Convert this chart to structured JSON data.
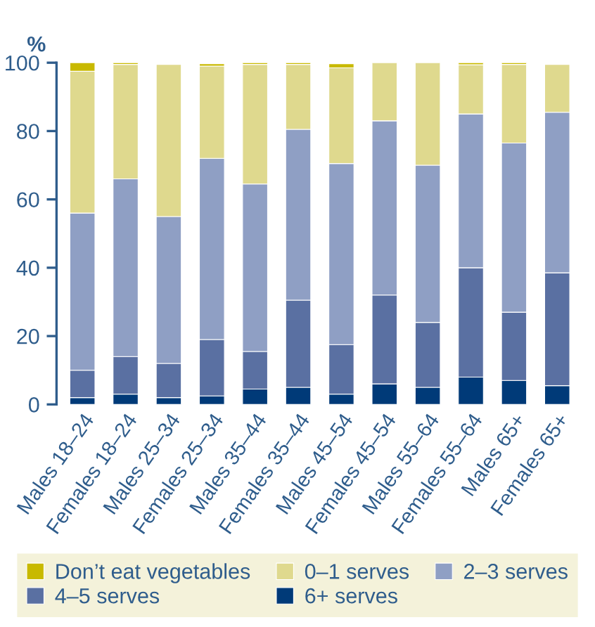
{
  "chart_data": {
    "type": "bar",
    "stacked": true,
    "ylabel": "%",
    "categories": [
      "Males 18–24",
      "Females 18–24",
      "Males 25–34",
      "Females 25–34",
      "Males 35–44",
      "Females 35–44",
      "Males 45–54",
      "Females 45–54",
      "Males 55–64",
      "Females 55–64",
      "Males 65+",
      "Females 65+"
    ],
    "series": [
      {
        "name": "6+ serves",
        "color": "#003a78",
        "values": [
          2,
          3,
          2,
          2.5,
          4.5,
          5,
          3,
          6,
          5,
          8,
          7,
          5.5
        ]
      },
      {
        "name": "4–5 serves",
        "color": "#5a70a2",
        "values": [
          8,
          11,
          10,
          16.5,
          11,
          25.5,
          14.5,
          26,
          19,
          32,
          20,
          33
        ]
      },
      {
        "name": "2–3 serves",
        "color": "#8f9fc4",
        "values": [
          46,
          52,
          43,
          53,
          49,
          50,
          53,
          51,
          46,
          45,
          49.5,
          47
        ]
      },
      {
        "name": "0–1 serves",
        "color": "#dfd98e",
        "values": [
          41.5,
          33.5,
          44.5,
          27,
          35,
          19,
          28,
          17,
          30,
          14.4,
          23,
          14
        ]
      },
      {
        "name": "Don’t eat vegetables",
        "color": "#c8b900",
        "values": [
          2.5,
          0.5,
          null,
          0.7,
          0.5,
          0.5,
          1.2,
          null,
          null,
          0.6,
          0.5,
          null
        ]
      }
    ],
    "ylim": [
      0,
      100
    ],
    "yticks": [
      0,
      20,
      40,
      60,
      80,
      100
    ],
    "grid": false,
    "legend": "bottom"
  }
}
